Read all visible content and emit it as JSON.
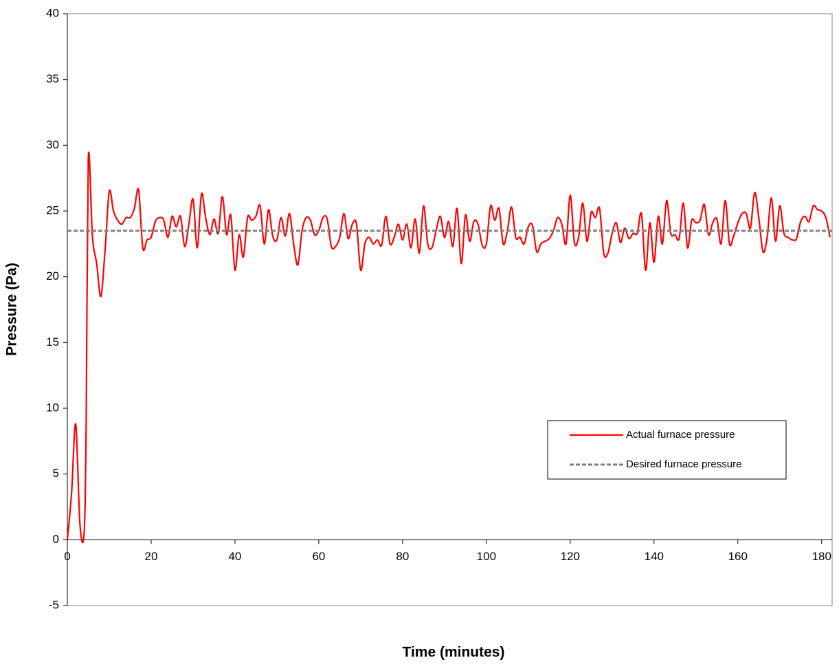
{
  "chart_data": {
    "type": "line",
    "xlabel": "Time (minutes)",
    "ylabel": "Pressure (Pa)",
    "xlim": [
      0,
      182.5
    ],
    "ylim": [
      -5,
      40
    ],
    "xticks": [
      0,
      20,
      40,
      60,
      80,
      100,
      120,
      140,
      160,
      180
    ],
    "yticks": [
      -5,
      0,
      5,
      10,
      15,
      20,
      25,
      30,
      35,
      40
    ],
    "series": [
      {
        "name": "Actual furnace pressure",
        "color": "#ff0000",
        "line_style": "solid",
        "x": [
          0,
          1,
          2,
          3,
          4,
          4.5,
          5,
          6,
          7,
          8,
          9,
          10,
          11,
          12,
          13,
          14,
          15,
          16,
          17,
          18,
          19,
          20,
          21,
          22,
          23,
          24,
          25,
          26,
          27,
          28,
          29,
          30,
          31,
          32,
          33,
          34,
          35,
          36,
          37,
          38,
          39,
          40,
          41,
          42,
          43,
          44,
          45,
          46,
          47,
          48,
          49,
          50,
          51,
          52,
          53,
          54,
          55,
          56,
          57,
          58,
          59,
          60,
          61,
          62,
          63,
          64,
          65,
          66,
          67,
          68,
          69,
          70,
          71,
          72,
          73,
          74,
          75,
          76,
          77,
          78,
          79,
          80,
          81,
          82,
          83,
          84,
          85,
          86,
          87,
          88,
          89,
          90,
          91,
          92,
          93,
          94,
          95,
          96,
          97,
          98,
          99,
          100,
          101,
          102,
          103,
          104,
          105,
          106,
          107,
          108,
          109,
          110,
          111,
          112,
          113,
          114,
          115,
          116,
          117,
          118,
          119,
          120,
          121,
          122,
          123,
          124,
          125,
          126,
          127,
          128,
          129,
          130,
          131,
          132,
          133,
          134,
          135,
          136,
          137,
          138,
          139,
          140,
          141,
          142,
          143,
          144,
          145,
          146,
          147,
          148,
          149,
          150,
          151,
          152,
          153,
          154,
          155,
          156,
          157,
          158,
          159,
          160,
          161,
          162,
          163,
          164,
          165,
          166,
          167,
          168,
          169,
          170,
          171,
          172,
          173,
          174,
          175,
          176,
          177,
          178,
          179,
          180,
          181,
          182
        ],
        "values": [
          0,
          3.5,
          8.8,
          1.2,
          0.5,
          9,
          29,
          23,
          21,
          18.5,
          22,
          26.5,
          25,
          24.3,
          24,
          24.5,
          24.5,
          25.2,
          26.6,
          22.2,
          22.8,
          23,
          24.2,
          24.5,
          24.3,
          23,
          24.6,
          23.8,
          24.6,
          22.3,
          24,
          25.9,
          22.2,
          26.3,
          24.5,
          23.2,
          24.4,
          23.3,
          26.1,
          23.2,
          24.7,
          20.5,
          23.2,
          21.5,
          24.5,
          24.3,
          24.6,
          25.4,
          22.5,
          25.1,
          23.1,
          22.8,
          24.5,
          23.1,
          24.8,
          22.5,
          20.9,
          23.5,
          24.5,
          24.3,
          23.2,
          23.5,
          24.5,
          24.4,
          22.3,
          22.3,
          23,
          24.8,
          22.9,
          24,
          24,
          20.5,
          22.5,
          23,
          22.5,
          22.8,
          22.4,
          24.6,
          22.5,
          23,
          24,
          22.8,
          24,
          22.2,
          24.4,
          21.8,
          25.4,
          22.5,
          22.2,
          23.5,
          24.6,
          23,
          24.2,
          22.3,
          25.2,
          21,
          24.7,
          22.7,
          24.2,
          24,
          22.4,
          22.5,
          25.4,
          24.3,
          25.2,
          22.5,
          23.5,
          25.3,
          23,
          23,
          22.5,
          23.8,
          23.9,
          21.9,
          22.5,
          22.7,
          22.9,
          23.5,
          24.5,
          24,
          22.5,
          26.2,
          22.6,
          23,
          25.6,
          22.7,
          24.9,
          24.5,
          25.2,
          21.8,
          21.8,
          23.3,
          24.1,
          22.6,
          23.7,
          22.9,
          23.3,
          23.3,
          24.8,
          20.5,
          24.1,
          21.1,
          24.6,
          22.5,
          25.8,
          23.3,
          23.2,
          22.9,
          25.6,
          22.2,
          24.3,
          24.1,
          24.3,
          25.5,
          23.2,
          24.1,
          24.4,
          22.5,
          25.8,
          22.5,
          23.1,
          24.1,
          24.8,
          24.8,
          23.7,
          26.4,
          24.5,
          21.9,
          23,
          26,
          22.7,
          25.4,
          23.3,
          23,
          22.8,
          22.9,
          24.2,
          24.6,
          24.2,
          25.4,
          25.1,
          25,
          24.5,
          23
        ]
      },
      {
        "name": "Desired furnace pressure",
        "color": "#808080",
        "line_style": "dashed",
        "x": [
          0,
          182.5
        ],
        "values": [
          23.5,
          23.5
        ]
      }
    ]
  }
}
